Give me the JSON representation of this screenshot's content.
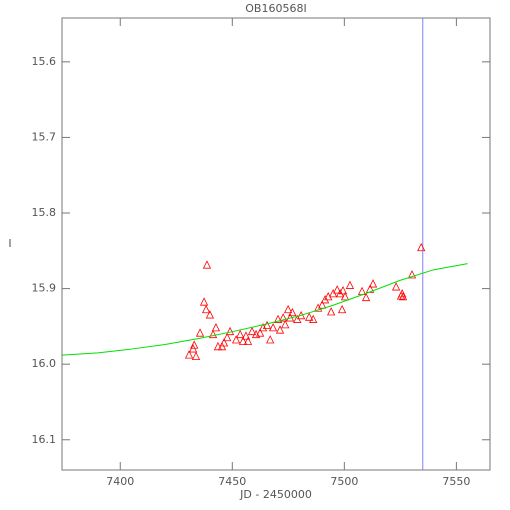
{
  "chart_data": {
    "type": "scatter",
    "title": "OB160568I",
    "x_label": "JD - 2450000",
    "y_label": "I",
    "xlim": [
      7374,
      7565
    ],
    "ylim": [
      16.14,
      15.542
    ],
    "xticks": [
      7400,
      7450,
      7500,
      7550
    ],
    "yticks": [
      15.6,
      15.7,
      15.8,
      15.9,
      {
        "value": 16,
        "label": "16.0"
      },
      16.1
    ],
    "series": [
      {
        "type": "scatter",
        "marker": "triangle",
        "color": "#ff0000",
        "x": [
          7430.7,
          7432.5,
          7433.8,
          7433,
          7435.6,
          7437.4,
          7438.7,
          7438.3,
          7440,
          7441.4,
          7442.7,
          7443.6,
          7445.4,
          7446.3,
          7447.7,
          7449,
          7451.7,
          7453.5,
          7454.8,
          7456.1,
          7457,
          7458.8,
          7460.6,
          7462.4,
          7463.7,
          7465.5,
          7466.9,
          7468.2,
          7470.4,
          7471.3,
          7472.7,
          7473.6,
          7474.9,
          7475.8,
          7476.8,
          7479,
          7480.7,
          7484.3,
          7486.1,
          7488.3,
          7490.1,
          7491.4,
          7492.8,
          7494.1,
          7495,
          7496.8,
          7498.1,
          7499.4,
          7500.3,
          7499,
          7502.5,
          7507.9,
          7509.7,
          7511.5,
          7512.8,
          7523.1,
          7525.3,
          7526.2,
          7525.8,
          7530.2,
          7534.3
        ],
        "values": [
          15.988,
          15.98,
          15.99,
          15.975,
          15.959,
          15.918,
          15.869,
          15.928,
          15.935,
          15.961,
          15.952,
          15.977,
          15.977,
          15.972,
          15.965,
          15.957,
          15.968,
          15.961,
          15.97,
          15.963,
          15.97,
          15.957,
          15.961,
          15.959,
          15.952,
          15.949,
          15.968,
          15.952,
          15.941,
          15.955,
          15.939,
          15.948,
          15.928,
          15.939,
          15.932,
          15.941,
          15.936,
          15.938,
          15.941,
          15.926,
          15.922,
          15.915,
          15.911,
          15.931,
          15.907,
          15.902,
          15.907,
          15.903,
          15.911,
          15.928,
          15.896,
          15.904,
          15.912,
          15.901,
          15.894,
          15.898,
          15.91,
          15.911,
          15.907,
          15.882,
          15.846
        ]
      },
      {
        "type": "line",
        "color": "#00e000",
        "x": [
          7374,
          7390,
          7405,
          7420,
          7435,
          7450,
          7465,
          7480,
          7495,
          7510,
          7525,
          7540,
          7555
        ],
        "values": [
          15.988,
          15.985,
          15.98,
          15.974,
          15.966,
          15.957,
          15.947,
          15.936,
          15.922,
          15.906,
          15.889,
          15.875,
          15.867
        ]
      }
    ],
    "vlines": [
      {
        "x": 7535,
        "color": "#8080ff"
      }
    ]
  }
}
